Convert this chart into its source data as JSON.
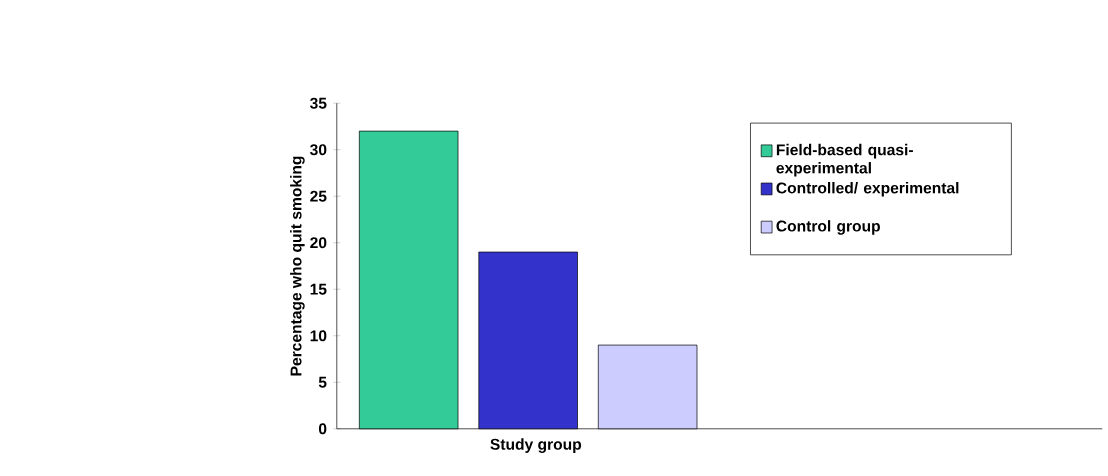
{
  "chart_data": {
    "type": "bar",
    "xlabel": "Study group",
    "ylabel": "Percentage who quit smoking",
    "categories": [
      null,
      null
    ],
    "series": [
      {
        "name": "Field-based quasi-experimental",
        "color": "#33cc99",
        "values": [
          32,
          null
        ]
      },
      {
        "name": "Controlled/ experimental",
        "color": "#3333cc",
        "values": [
          19,
          null
        ]
      },
      {
        "name": "Control group",
        "color": "#ccccff",
        "values": [
          9,
          null
        ]
      }
    ],
    "ylim": [
      0,
      35
    ],
    "yticks": [
      0,
      5,
      10,
      15,
      20,
      25,
      30,
      35
    ],
    "grid": false,
    "legend": "right"
  }
}
